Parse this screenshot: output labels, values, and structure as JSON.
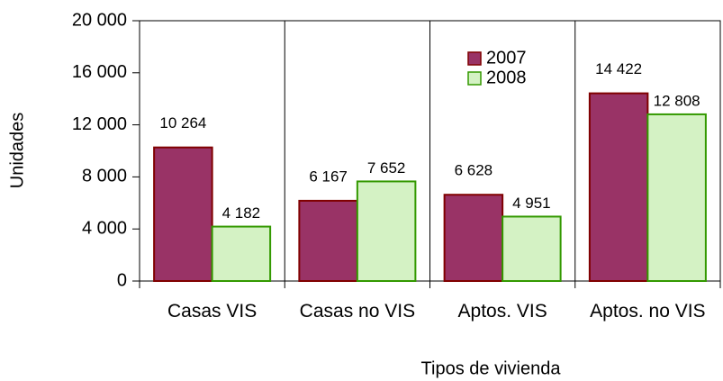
{
  "chart_data": {
    "type": "bar",
    "y_label": "Unidades",
    "x_label": "Tipos de vivienda",
    "categories": [
      "Casas VIS",
      "Casas no VIS",
      "Aptos. VIS",
      "Aptos. no VIS"
    ],
    "series": [
      {
        "name": "2007",
        "color": "#993366",
        "edge": "#800000",
        "values": [
          10264,
          6167,
          6628,
          14422
        ],
        "value_labels": [
          "10 264",
          "6 167",
          "6 628",
          "14 422"
        ]
      },
      {
        "name": "2008",
        "color": "#d4f2c4",
        "edge": "#339900",
        "values": [
          4182,
          7652,
          4951,
          12808
        ],
        "value_labels": [
          "4 182",
          "7 652",
          "4 951",
          "12 808"
        ]
      }
    ],
    "ylim": [
      0,
      20000
    ],
    "yticks": [
      0,
      {
        "value": 4000,
        "label": "4 000"
      },
      {
        "value": 8000,
        "label": "8 000"
      },
      {
        "value": 12000,
        "label": "12 000"
      },
      {
        "value": 16000,
        "label": "16 000"
      },
      {
        "value": 20000,
        "label": "20 000"
      }
    ],
    "legend": "top-center"
  }
}
